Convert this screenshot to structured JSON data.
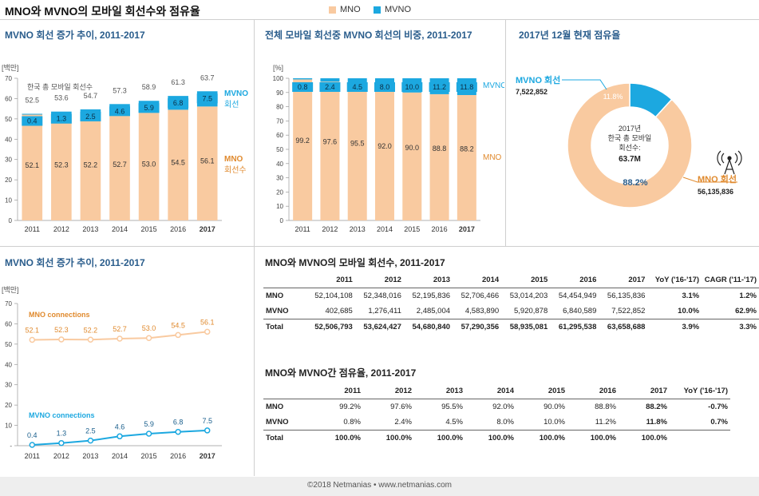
{
  "header": {
    "title": "MNO와 MVNO의 모바일 회선수와 점유율",
    "legend": [
      {
        "label": "MNO",
        "color": "#f9caa0"
      },
      {
        "label": "MVNO",
        "color": "#1ca8e0"
      }
    ]
  },
  "footer": "©2018 Netmanias • www.netmanias.com",
  "chart_data": [
    {
      "type": "bar",
      "id": "stacked-connections",
      "title": "MVNO 회선 증가 추이, 2011-2017",
      "unit_label": "[백만]",
      "categories": [
        "2011",
        "2012",
        "2013",
        "2014",
        "2015",
        "2016",
        "2017"
      ],
      "ylim": [
        0,
        70
      ],
      "yticks": [
        0,
        10,
        20,
        30,
        40,
        50,
        60,
        70
      ],
      "series": [
        {
          "name": "MNO",
          "values": [
            52.1,
            52.3,
            52.2,
            52.7,
            53.0,
            54.5,
            56.1
          ]
        },
        {
          "name": "MVNO",
          "values": [
            0.4,
            1.3,
            2.5,
            4.6,
            5.9,
            6.8,
            7.5
          ]
        }
      ],
      "totals": [
        52.5,
        53.6,
        54.7,
        57.3,
        58.9,
        61.3,
        63.7
      ],
      "annotations": {
        "total": "한국 총 모바일 회선수",
        "mvno": "MVNO 회선",
        "mno": "MNO 회선수"
      }
    },
    {
      "type": "bar",
      "id": "stacked-share",
      "title": "전체 모바일 회선중 MVNO 회선의 비중, 2011-2017",
      "unit_label": "[%]",
      "categories": [
        "2011",
        "2012",
        "2013",
        "2014",
        "2015",
        "2016",
        "2017"
      ],
      "ylim": [
        0,
        100
      ],
      "yticks": [
        0,
        10,
        20,
        30,
        40,
        50,
        60,
        70,
        80,
        90,
        100
      ],
      "series": [
        {
          "name": "MNO",
          "values": [
            99.2,
            97.6,
            95.5,
            92.0,
            90.0,
            88.8,
            88.2
          ]
        },
        {
          "name": "MVNO",
          "values": [
            0.8,
            2.4,
            4.5,
            8.0,
            10.0,
            11.2,
            11.8
          ]
        }
      ],
      "annotations": {
        "mvno": "MVNO",
        "mno": "MNO"
      }
    },
    {
      "type": "pie",
      "id": "share-donut",
      "title": "2017년 12월 현재 점유율",
      "slices": [
        {
          "name": "MVNO 회선",
          "value": 11.8,
          "label": "11.8%",
          "count": "7,522,852"
        },
        {
          "name": "MNO 회선",
          "value": 88.2,
          "label": "88.2%",
          "count": "56,135,836"
        }
      ],
      "center_text": [
        "2017년",
        "한국 총 모바일",
        "회선수:"
      ],
      "center_value": "63.7M"
    },
    {
      "type": "line",
      "id": "line-connections",
      "title": "MVNO 회선 증가 추이, 2011-2017",
      "unit_label": "[백만]",
      "categories": [
        "2011",
        "2012",
        "2013",
        "2014",
        "2015",
        "2016",
        "2017"
      ],
      "ylim": [
        0,
        70
      ],
      "yticks": [
        0,
        10,
        20,
        30,
        40,
        50,
        60,
        70
      ],
      "series": [
        {
          "name": "MNO connections",
          "values": [
            52.1,
            52.3,
            52.2,
            52.7,
            53.0,
            54.5,
            56.1
          ]
        },
        {
          "name": "MVNO connections",
          "values": [
            0.4,
            1.3,
            2.5,
            4.6,
            5.9,
            6.8,
            7.5
          ]
        }
      ]
    }
  ],
  "tables": {
    "connections": {
      "title": "MNO와 MVNO의 모바일 회선수, 2011-2017",
      "headers": [
        "",
        "2011",
        "2012",
        "2013",
        "2014",
        "2015",
        "2016",
        "2017",
        "YoY ('16-'17)",
        "CAGR ('11-'17)"
      ],
      "rows": [
        {
          "label": "MNO",
          "cells": [
            "52,104,108",
            "52,348,016",
            "52,195,836",
            "52,706,466",
            "53,014,203",
            "54,454,949",
            "56,135,836",
            "3.1%",
            "1.2%"
          ]
        },
        {
          "label": "MVNO",
          "cells": [
            "402,685",
            "1,276,411",
            "2,485,004",
            "4,583,890",
            "5,920,878",
            "6,840,589",
            "7,522,852",
            "10.0%",
            "62.9%"
          ]
        },
        {
          "label": "Total",
          "cells": [
            "52,506,793",
            "53,624,427",
            "54,680,840",
            "57,290,356",
            "58,935,081",
            "61,295,538",
            "63,658,688",
            "3.9%",
            "3.3%"
          ]
        }
      ]
    },
    "share": {
      "title": "MNO와 MVNO간 점유율, 2011-2017",
      "headers": [
        "",
        "2011",
        "2012",
        "2013",
        "2014",
        "2015",
        "2016",
        "2017",
        "YoY ('16-'17)"
      ],
      "rows": [
        {
          "label": "MNO",
          "cells": [
            "99.2%",
            "97.6%",
            "95.5%",
            "92.0%",
            "90.0%",
            "88.8%",
            "88.2%",
            "-0.7%"
          ]
        },
        {
          "label": "MVNO",
          "cells": [
            "0.8%",
            "2.4%",
            "4.5%",
            "8.0%",
            "10.0%",
            "11.2%",
            "11.8%",
            "0.7%"
          ]
        },
        {
          "label": "Total",
          "cells": [
            "100.0%",
            "100.0%",
            "100.0%",
            "100.0%",
            "100.0%",
            "100.0%",
            "100.0%",
            ""
          ]
        }
      ]
    }
  },
  "colors": {
    "mno": "#f9caa0",
    "mvno": "#1ca8e0",
    "mno_text": "#e08a2e",
    "mvno_text": "#1ca8e0"
  },
  "icons": {
    "tower": "antenna-tower-icon"
  }
}
